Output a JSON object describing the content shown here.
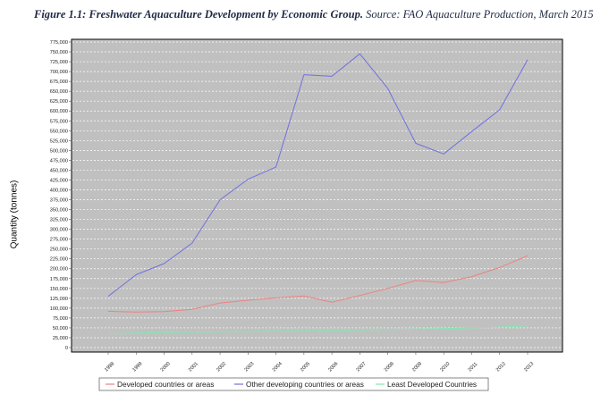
{
  "caption": {
    "bold": "Figure 1.1: Freshwater Aquaculture Development by Economic Group.",
    "rest": " Source: FAO Aquaculture Production, March 2015"
  },
  "chart_data": {
    "type": "line",
    "title": "",
    "xlabel": "",
    "ylabel": "Quantity (tonnes)",
    "x": [
      "1998",
      "1999",
      "2000",
      "2001",
      "2002",
      "2003",
      "2004",
      "2005",
      "2006",
      "2007",
      "2008",
      "2009",
      "2010",
      "2011",
      "2012",
      "2013"
    ],
    "ylim": [
      0,
      775000
    ],
    "ytick_step": 25000,
    "grid": true,
    "legend_position": "bottom",
    "series": [
      {
        "name": "Developed countries or areas",
        "color": "#f08080",
        "values": [
          92000,
          90000,
          91000,
          97000,
          113000,
          120000,
          126000,
          131000,
          115000,
          132000,
          150000,
          170000,
          165000,
          180000,
          203000,
          233000
        ]
      },
      {
        "name": "Other developing countries or areas",
        "color": "#7070e0",
        "values": [
          130000,
          185000,
          213000,
          265000,
          375000,
          427000,
          458000,
          692000,
          688000,
          745000,
          657000,
          518000,
          491000,
          548000,
          603000,
          730000
        ]
      },
      {
        "name": "Least Developed Countries",
        "color": "#80e8b0",
        "values": [
          35000,
          37000,
          38000,
          39000,
          40000,
          41000,
          42000,
          43000,
          44000,
          45000,
          46000,
          47000,
          48000,
          50000,
          52000,
          55000
        ]
      }
    ]
  }
}
